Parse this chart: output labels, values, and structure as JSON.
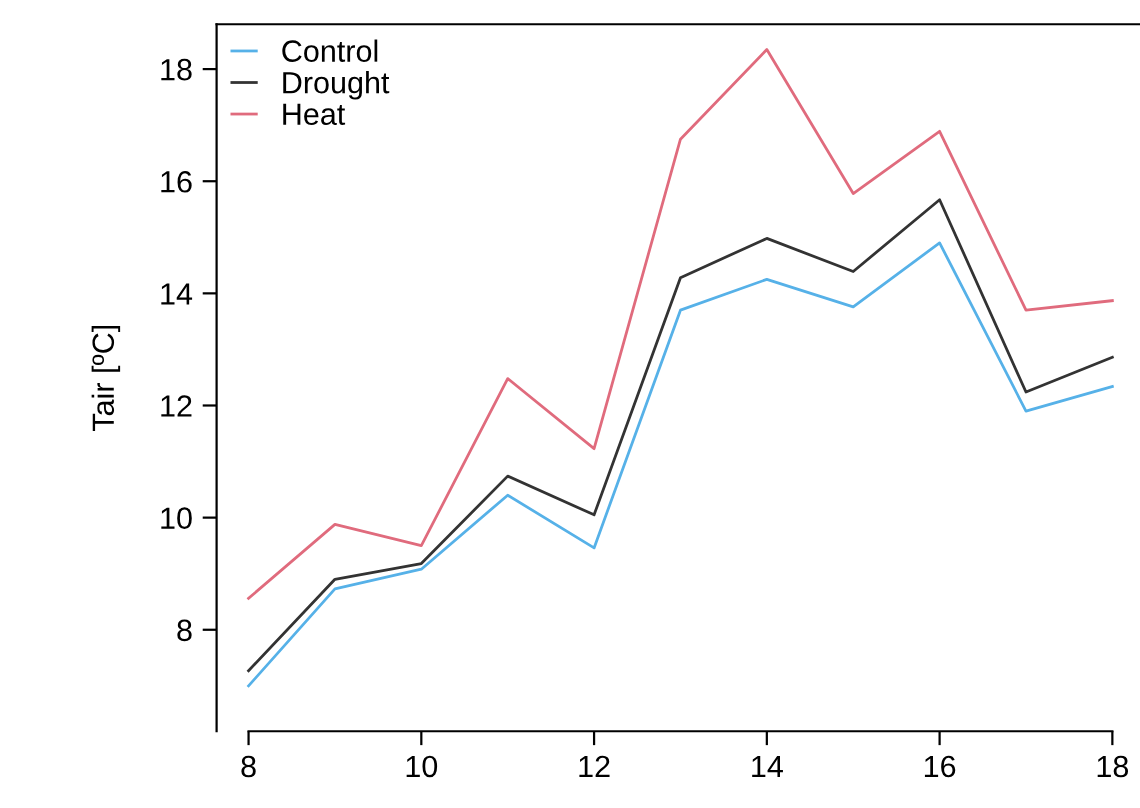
{
  "chart_data": {
    "type": "line",
    "ylabel": "Tair [ºC]",
    "x": [
      8,
      9,
      10,
      11,
      12,
      13,
      14,
      15,
      16,
      17,
      18
    ],
    "series": [
      {
        "name": "Control",
        "color": "#56b1e8",
        "values": [
          7.0,
          8.73,
          9.08,
          10.4,
          9.46,
          13.7,
          14.25,
          13.76,
          14.9,
          11.9,
          12.34
        ]
      },
      {
        "name": "Drought",
        "color": "#333333",
        "values": [
          7.27,
          8.9,
          9.18,
          10.74,
          10.05,
          14.28,
          14.98,
          14.39,
          15.67,
          12.24,
          12.86
        ]
      },
      {
        "name": "Heat",
        "color": "#e06b7d",
        "values": [
          8.56,
          9.88,
          9.5,
          12.48,
          11.23,
          16.75,
          18.35,
          15.78,
          16.89,
          13.7,
          13.87
        ]
      }
    ],
    "xlim": [
      7.63,
      18.32
    ],
    "ylim": [
      6.19,
      18.8
    ],
    "xticks": [
      8,
      10,
      12,
      14,
      16,
      18
    ],
    "yticks": [
      8,
      10,
      12,
      14,
      16,
      18
    ],
    "grid": false,
    "legend": "top left",
    "marker": "none",
    "line_style": "solid"
  }
}
